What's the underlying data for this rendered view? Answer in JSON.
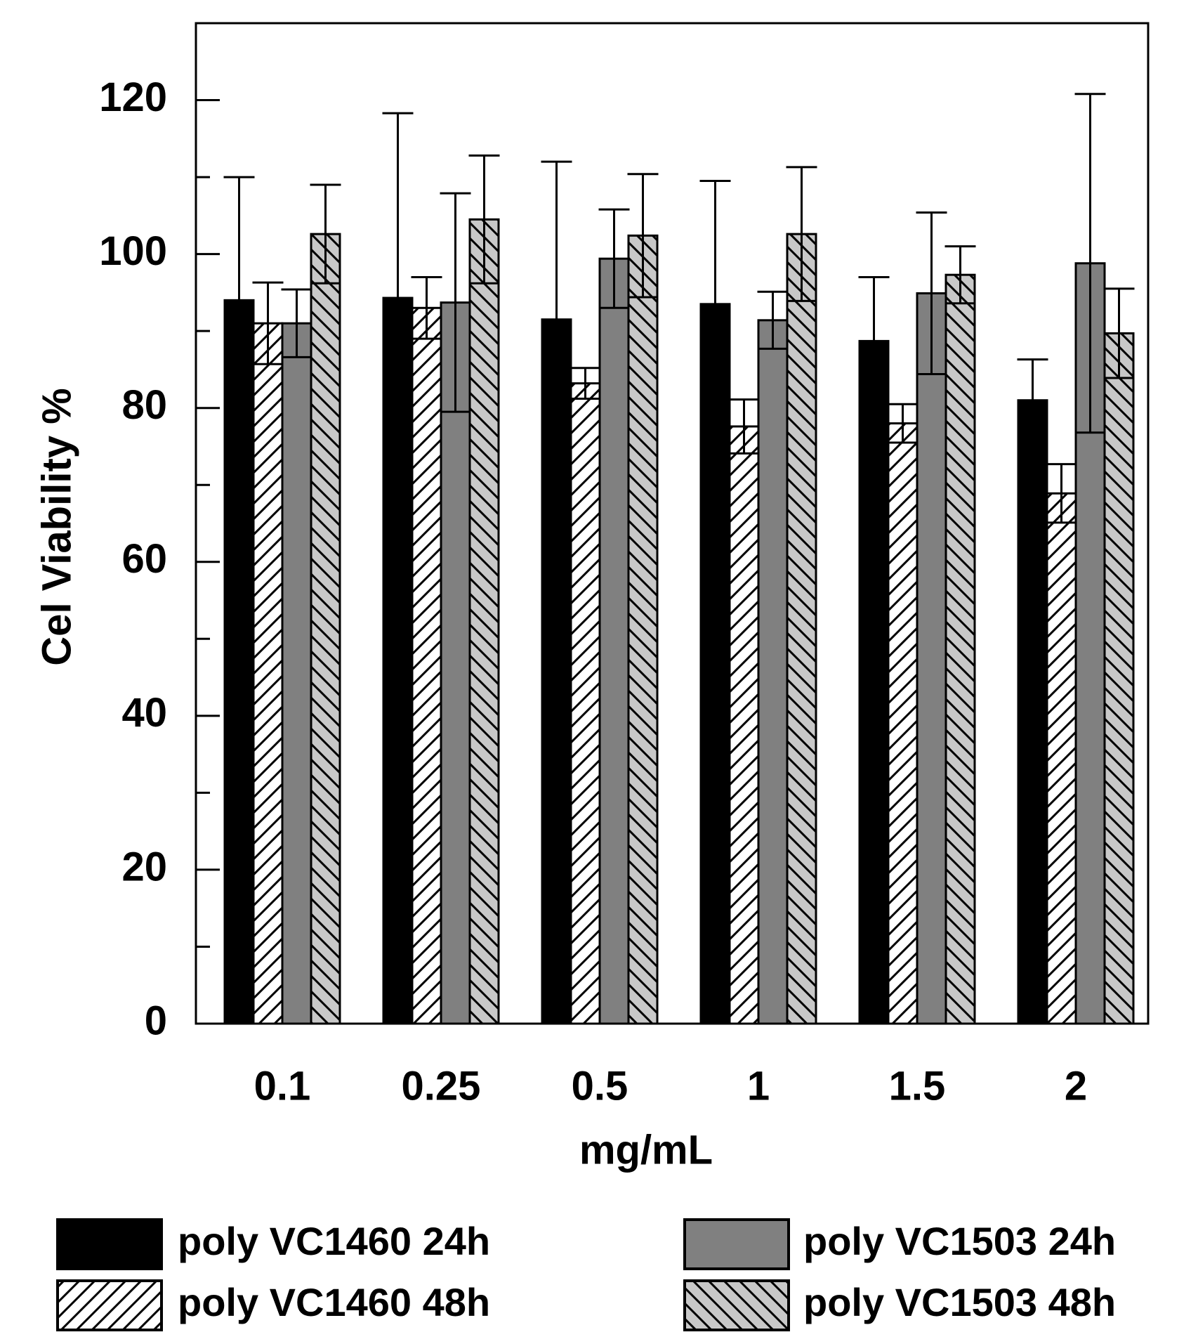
{
  "chart_data": {
    "type": "bar",
    "title": "",
    "xlabel": "mg/mL",
    "ylabel": "Cel Viability %",
    "ylim": [
      0,
      130
    ],
    "yticks": [
      "0",
      "20",
      "40",
      "60",
      "80",
      "100",
      "120"
    ],
    "categories": [
      "0.1",
      "0.25",
      "0.5",
      "1",
      "1.5",
      "2"
    ],
    "series": [
      {
        "name": "poly VC1460 24h",
        "fill": "#000000",
        "pattern": "solid",
        "values": [
          94,
          94.3,
          91.5,
          93.5,
          88.7,
          81
        ],
        "errors": [
          16,
          24,
          20.5,
          16,
          8.3,
          5.3
        ]
      },
      {
        "name": "poly VC1460 48h",
        "fill": "#ffffff",
        "pattern": "forward-hatch",
        "values": [
          91,
          93,
          83.2,
          77.6,
          78,
          68.9
        ],
        "errors": [
          5.3,
          4,
          2,
          3.5,
          2.5,
          3.8
        ]
      },
      {
        "name": "poly VC1503 24h",
        "fill": "#808080",
        "pattern": "solid",
        "values": [
          91,
          93.7,
          99.4,
          91.4,
          94.9,
          98.8
        ],
        "errors": [
          4.4,
          14.2,
          6.4,
          3.7,
          10.5,
          22
        ]
      },
      {
        "name": "poly VC1503 48h",
        "fill": "#c8c8c8",
        "pattern": "back-hatch",
        "values": [
          102.6,
          104.5,
          102.4,
          102.6,
          97.3,
          89.7
        ],
        "errors": [
          6.4,
          8.3,
          8,
          8.7,
          3.7,
          5.8
        ]
      }
    ],
    "legend": {
      "placement": "bottom",
      "columns": 2
    }
  }
}
